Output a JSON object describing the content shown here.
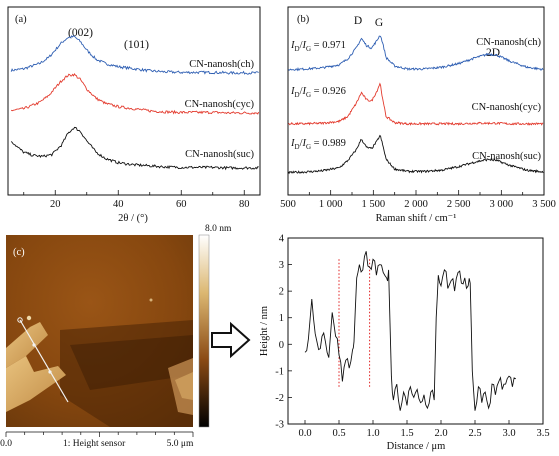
{
  "chart_data": [
    {
      "panel": "(a)",
      "type": "line",
      "xlabel": "2θ / (°)",
      "x_ticks": [
        "20",
        "40",
        "60",
        "80"
      ],
      "xlim": [
        5,
        85
      ],
      "peaks": [
        "(002)",
        "(101)"
      ],
      "series": [
        {
          "name": "CN-nanosh(ch)",
          "color": "#2f5fb3",
          "x": [
            5,
            10,
            15,
            18,
            20,
            22,
            24,
            26,
            28,
            30,
            33,
            36,
            40,
            45,
            50,
            55,
            60,
            65,
            70,
            75,
            80,
            85
          ],
          "y": [
            0.08,
            0.12,
            0.22,
            0.34,
            0.48,
            0.62,
            0.72,
            0.74,
            0.64,
            0.48,
            0.3,
            0.22,
            0.16,
            0.12,
            0.08,
            0.06,
            0.05,
            0.05,
            0.05,
            0.04,
            0.04,
            0.04
          ]
        },
        {
          "name": "CN-nanosh(cyc)",
          "color": "#e33b2e",
          "x": [
            5,
            10,
            15,
            18,
            20,
            22,
            24,
            26,
            28,
            30,
            33,
            36,
            40,
            45,
            50,
            55,
            60,
            65,
            70,
            75,
            80,
            85
          ],
          "y": [
            0.08,
            0.12,
            0.24,
            0.38,
            0.52,
            0.66,
            0.76,
            0.78,
            0.68,
            0.5,
            0.32,
            0.22,
            0.16,
            0.12,
            0.08,
            0.06,
            0.05,
            0.05,
            0.05,
            0.04,
            0.04,
            0.04
          ]
        },
        {
          "name": "CN-nanosh(suc)",
          "color": "#111111",
          "x": [
            5,
            8,
            10,
            13,
            16,
            19,
            22,
            24,
            26,
            28,
            30,
            33,
            36,
            40,
            45,
            50,
            55,
            60,
            65,
            70,
            75,
            80,
            85
          ],
          "y": [
            0.62,
            0.44,
            0.34,
            0.28,
            0.26,
            0.3,
            0.48,
            0.7,
            0.82,
            0.74,
            0.56,
            0.34,
            0.22,
            0.14,
            0.1,
            0.08,
            0.06,
            0.05,
            0.05,
            0.05,
            0.04,
            0.04,
            0.04
          ]
        }
      ]
    },
    {
      "panel": "(b)",
      "type": "line",
      "xlabel": "Raman shift / cm⁻¹",
      "x_ticks": [
        "500",
        "1 000",
        "1 500",
        "2 000",
        "2 500",
        "3 000",
        "3 500"
      ],
      "xlim": [
        500,
        3500
      ],
      "band_labels": [
        "D",
        "G",
        "2D"
      ],
      "ratio_label": "ID/IG",
      "series": [
        {
          "name": "CN-nanosh(ch)",
          "ratio": "0.971",
          "color": "#2f5fb3",
          "x": [
            500,
            700,
            900,
            1100,
            1200,
            1300,
            1360,
            1420,
            1480,
            1540,
            1580,
            1610,
            1650,
            1750,
            1900,
            2100,
            2300,
            2500,
            2700,
            2850,
            2950,
            3100,
            3300,
            3500
          ],
          "y": [
            0.04,
            0.05,
            0.07,
            0.12,
            0.22,
            0.4,
            0.56,
            0.44,
            0.4,
            0.52,
            0.62,
            0.48,
            0.24,
            0.1,
            0.05,
            0.05,
            0.08,
            0.14,
            0.24,
            0.3,
            0.28,
            0.18,
            0.08,
            0.04
          ]
        },
        {
          "name": "CN-nanosh(cyc)",
          "ratio": "0.926",
          "color": "#e33b2e",
          "x": [
            500,
            700,
            900,
            1100,
            1200,
            1300,
            1360,
            1420,
            1480,
            1540,
            1580,
            1610,
            1650,
            1750,
            1900,
            2100,
            2300,
            2500,
            2700,
            2850,
            2950,
            3100,
            3300,
            3500
          ],
          "y": [
            0.02,
            0.02,
            0.03,
            0.06,
            0.14,
            0.36,
            0.54,
            0.42,
            0.4,
            0.56,
            0.7,
            0.42,
            0.14,
            0.04,
            0.02,
            0.02,
            0.02,
            0.02,
            0.03,
            0.03,
            0.03,
            0.02,
            0.02,
            0.02
          ]
        },
        {
          "name": "CN-nanosh(suc)",
          "ratio": "0.989",
          "color": "#111111",
          "x": [
            500,
            700,
            900,
            1100,
            1200,
            1300,
            1360,
            1420,
            1480,
            1540,
            1580,
            1610,
            1650,
            1750,
            1900,
            2100,
            2300,
            2500,
            2700,
            2850,
            2950,
            3100,
            3300,
            3500
          ],
          "y": [
            0.04,
            0.05,
            0.07,
            0.12,
            0.24,
            0.42,
            0.6,
            0.46,
            0.44,
            0.56,
            0.66,
            0.5,
            0.26,
            0.1,
            0.06,
            0.06,
            0.08,
            0.14,
            0.22,
            0.26,
            0.24,
            0.16,
            0.08,
            0.05
          ]
        }
      ]
    },
    {
      "panel": "(c)",
      "type": "heatmap",
      "colorbar_max": "8.0 nm",
      "colorbar_colors": [
        "#ffffff",
        "#d9b46a",
        "#8a4a14",
        "#000000"
      ],
      "scale_min": "0.0",
      "scale_max": "5.0 μm",
      "scale_caption": "1: Height sensor"
    },
    {
      "panel": "profile",
      "type": "line",
      "xlabel": "Distance / μm",
      "ylabel": "Height / nm",
      "xlim": [
        -0.25,
        3.5
      ],
      "ylim": [
        -3,
        4
      ],
      "x_ticks": [
        "0.0",
        "0.5",
        "1.0",
        "1.5",
        "2.0",
        "2.5",
        "3.0",
        "3.5"
      ],
      "y_ticks": [
        "-3",
        "-2",
        "-1",
        "0",
        "1",
        "2",
        "3",
        "4"
      ],
      "markers_x": [
        0.5,
        0.95
      ],
      "series": [
        {
          "color": "#111111",
          "x": [
            0.0,
            0.05,
            0.1,
            0.15,
            0.2,
            0.25,
            0.3,
            0.35,
            0.4,
            0.45,
            0.5,
            0.55,
            0.6,
            0.65,
            0.7,
            0.72,
            0.76,
            0.8,
            0.85,
            0.9,
            0.95,
            1.0,
            1.05,
            1.1,
            1.15,
            1.2,
            1.23,
            1.27,
            1.3,
            1.35,
            1.4,
            1.45,
            1.5,
            1.55,
            1.6,
            1.65,
            1.7,
            1.75,
            1.8,
            1.85,
            1.9,
            1.93,
            1.96,
            2.0,
            2.05,
            2.1,
            2.15,
            2.2,
            2.25,
            2.3,
            2.35,
            2.4,
            2.43,
            2.46,
            2.5,
            2.55,
            2.6,
            2.65,
            2.7,
            2.75,
            2.8,
            2.85,
            2.9,
            2.95,
            3.0,
            3.05,
            3.1
          ],
          "y": [
            -0.3,
            0.2,
            1.7,
            0.4,
            -0.2,
            0.3,
            0.1,
            -0.5,
            1.2,
            0.3,
            -0.4,
            -1.4,
            -0.6,
            -0.9,
            -0.2,
            0.1,
            2.5,
            3.0,
            2.8,
            3.5,
            2.9,
            3.2,
            2.6,
            3.0,
            2.7,
            2.5,
            2.8,
            -1.2,
            -2.1,
            -1.5,
            -2.5,
            -1.8,
            -2.3,
            -1.6,
            -2.0,
            -1.7,
            -2.2,
            -1.9,
            -2.4,
            -1.8,
            -2.1,
            1.0,
            2.6,
            2.2,
            2.8,
            2.1,
            2.4,
            2.0,
            2.7,
            2.3,
            2.5,
            2.2,
            2.3,
            -1.0,
            -2.5,
            -1.6,
            -2.2,
            -1.8,
            -2.4,
            -1.5,
            -1.9,
            -1.4,
            -1.7,
            -1.5,
            -1.2,
            -1.6,
            -1.3
          ]
        }
      ]
    }
  ]
}
